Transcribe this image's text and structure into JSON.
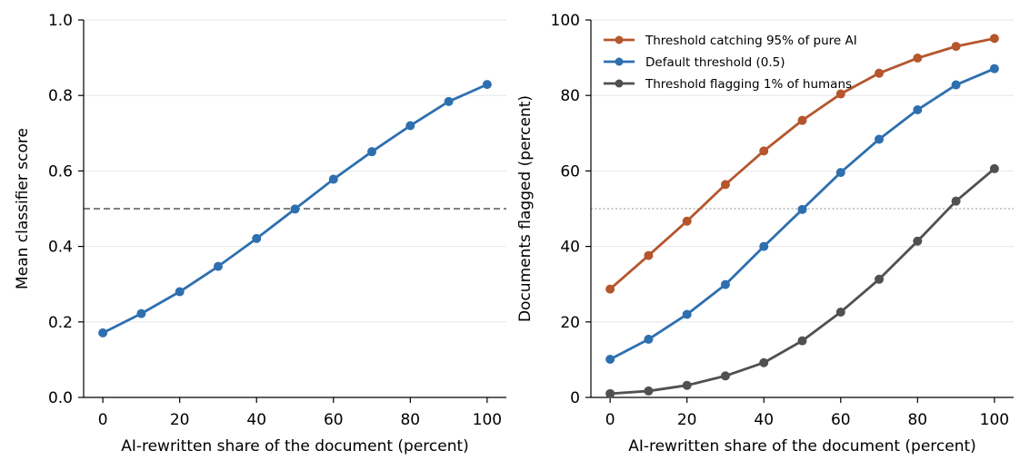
{
  "chart_data": [
    {
      "type": "line",
      "xlabel": "AI-rewritten share of the document (percent)",
      "ylabel": "Mean classifier score",
      "xlim": [
        -5,
        105
      ],
      "ylim": [
        0,
        1.0
      ],
      "xticks": [
        0,
        20,
        40,
        60,
        80,
        100
      ],
      "yticks": [
        0.0,
        0.2,
        0.4,
        0.6,
        0.8,
        1.0
      ],
      "ytick_labels": [
        "0.0",
        "0.2",
        "0.4",
        "0.6",
        "0.8",
        "1.0"
      ],
      "x": [
        0,
        10,
        20,
        30,
        40,
        50,
        60,
        70,
        80,
        90,
        100
      ],
      "grid": "horizontal",
      "reference_line": {
        "y": 0.5,
        "style": "dashed",
        "color": "#555555"
      },
      "series": [
        {
          "values": [
            0.171,
            0.222,
            0.28,
            0.347,
            0.421,
            0.499,
            0.578,
            0.651,
            0.72,
            0.784,
            0.829
          ],
          "color": "#2e6faf"
        }
      ]
    },
    {
      "type": "line",
      "xlabel": "AI-rewritten share of the document (percent)",
      "ylabel": "Documents flagged (percent)",
      "xlim": [
        -5,
        105
      ],
      "ylim": [
        0,
        100
      ],
      "xticks": [
        0,
        20,
        40,
        60,
        80,
        100
      ],
      "yticks": [
        0,
        20,
        40,
        60,
        80,
        100
      ],
      "ytick_labels": [
        "0",
        "20",
        "40",
        "60",
        "80",
        "100"
      ],
      "x": [
        0,
        10,
        20,
        30,
        40,
        50,
        60,
        70,
        80,
        90,
        100
      ],
      "grid": "horizontal",
      "reference_line": {
        "y": 50,
        "style": "dotted",
        "color": "#aaaaaa"
      },
      "legend_position": "top-left",
      "series": [
        {
          "name": "Threshold catching 95% of pure AI",
          "values": [
            28.7,
            37.6,
            46.7,
            56.4,
            65.3,
            73.4,
            80.4,
            85.9,
            89.9,
            93.0,
            95.1
          ],
          "color": "#b5562d"
        },
        {
          "name": "Default threshold (0.5)",
          "values": [
            10.1,
            15.4,
            22.0,
            29.9,
            40.0,
            49.8,
            59.6,
            68.4,
            76.2,
            82.8,
            87.1
          ],
          "color": "#2e6faf"
        },
        {
          "name": "Threshold flagging 1% of humans",
          "values": [
            1.0,
            1.7,
            3.2,
            5.7,
            9.2,
            15.0,
            22.6,
            31.3,
            41.4,
            52.0,
            60.6
          ],
          "color": "#505050"
        }
      ]
    }
  ]
}
